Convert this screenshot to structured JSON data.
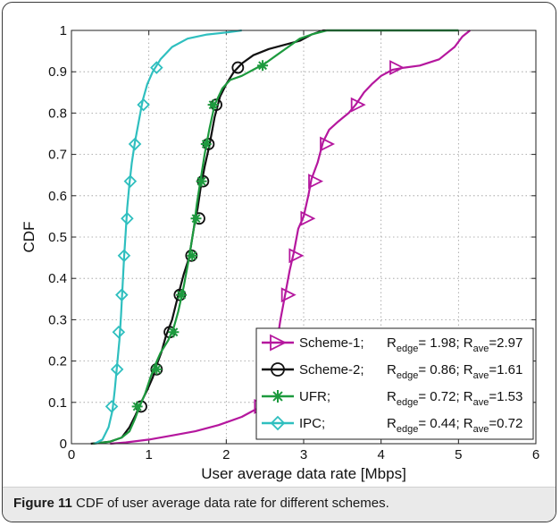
{
  "caption": {
    "label": "Figure 11",
    "text": "CDF of user average data rate for different schemes",
    "end": "."
  },
  "chart_data": {
    "type": "line",
    "title": "",
    "xlabel": "User average data rate [Mbps]",
    "ylabel": "CDF",
    "xlim": [
      0,
      6
    ],
    "ylim": [
      0,
      1
    ],
    "x_ticks": [
      "0",
      "1",
      "2",
      "3",
      "4",
      "5",
      "6"
    ],
    "y_ticks": [
      "0",
      "0.1",
      "0.2",
      "0.3",
      "0.4",
      "0.5",
      "0.6",
      "0.7",
      "0.8",
      "0.9",
      "1"
    ],
    "grid": true,
    "legend_position": "bottom-right",
    "series": [
      {
        "name": "Scheme-1",
        "legend": {
          "prefix": "Scheme-1;",
          "edge": "1.98",
          "ave": "2.97"
        },
        "color": "#b5179e",
        "marker": "triangle-right",
        "points": [
          [
            0.5,
            0
          ],
          [
            0.7,
            0.003
          ],
          [
            1.0,
            0.01
          ],
          [
            1.3,
            0.02
          ],
          [
            1.6,
            0.03
          ],
          [
            1.9,
            0.045
          ],
          [
            2.2,
            0.065
          ],
          [
            2.45,
            0.09
          ],
          [
            2.6,
            0.15
          ],
          [
            2.65,
            0.24
          ],
          [
            2.7,
            0.3
          ],
          [
            2.76,
            0.36
          ],
          [
            2.82,
            0.42
          ],
          [
            2.87,
            0.46
          ],
          [
            2.93,
            0.52
          ],
          [
            3.0,
            0.55
          ],
          [
            3.06,
            0.6
          ],
          [
            3.1,
            0.64
          ],
          [
            3.18,
            0.68
          ],
          [
            3.25,
            0.73
          ],
          [
            3.33,
            0.76
          ],
          [
            3.45,
            0.78
          ],
          [
            3.58,
            0.8
          ],
          [
            3.67,
            0.82
          ],
          [
            3.78,
            0.85
          ],
          [
            3.88,
            0.87
          ],
          [
            4.0,
            0.89
          ],
          [
            4.15,
            0.905
          ],
          [
            4.3,
            0.91
          ],
          [
            4.5,
            0.915
          ],
          [
            4.75,
            0.93
          ],
          [
            4.95,
            0.96
          ],
          [
            5.05,
            0.985
          ],
          [
            5.15,
            1.0
          ]
        ],
        "markers": [
          [
            2.45,
            0.09
          ],
          [
            2.8,
            0.36
          ],
          [
            2.9,
            0.455
          ],
          [
            3.05,
            0.545
          ],
          [
            3.15,
            0.635
          ],
          [
            3.3,
            0.725
          ],
          [
            3.7,
            0.82
          ],
          [
            4.2,
            0.91
          ]
        ]
      },
      {
        "name": "Scheme-2",
        "legend": {
          "prefix": "Scheme-2;",
          "edge": "0.86",
          "ave": "1.61"
        },
        "color": "#111111",
        "marker": "circle",
        "points": [
          [
            0.25,
            0
          ],
          [
            0.5,
            0.005
          ],
          [
            0.65,
            0.015
          ],
          [
            0.75,
            0.04
          ],
          [
            0.83,
            0.07
          ],
          [
            0.9,
            0.1
          ],
          [
            0.98,
            0.13
          ],
          [
            1.05,
            0.16
          ],
          [
            1.1,
            0.19
          ],
          [
            1.16,
            0.22
          ],
          [
            1.22,
            0.26
          ],
          [
            1.3,
            0.3
          ],
          [
            1.38,
            0.36
          ],
          [
            1.45,
            0.41
          ],
          [
            1.52,
            0.45
          ],
          [
            1.58,
            0.52
          ],
          [
            1.63,
            0.57
          ],
          [
            1.67,
            0.62
          ],
          [
            1.72,
            0.67
          ],
          [
            1.78,
            0.72
          ],
          [
            1.85,
            0.79
          ],
          [
            1.92,
            0.84
          ],
          [
            2.0,
            0.87
          ],
          [
            2.1,
            0.9
          ],
          [
            2.2,
            0.92
          ],
          [
            2.35,
            0.94
          ],
          [
            2.55,
            0.955
          ],
          [
            2.75,
            0.965
          ],
          [
            2.95,
            0.975
          ],
          [
            3.1,
            0.99
          ],
          [
            3.25,
            1.0
          ],
          [
            5.0,
            1.0
          ]
        ],
        "markers": [
          [
            0.9,
            0.09
          ],
          [
            1.1,
            0.18
          ],
          [
            1.27,
            0.27
          ],
          [
            1.4,
            0.36
          ],
          [
            1.55,
            0.455
          ],
          [
            1.65,
            0.545
          ],
          [
            1.7,
            0.635
          ],
          [
            1.77,
            0.725
          ],
          [
            1.87,
            0.82
          ],
          [
            2.15,
            0.91
          ]
        ]
      },
      {
        "name": "UFR",
        "legend": {
          "prefix": "UFR;",
          "edge": "0.72",
          "ave": "1.53"
        },
        "color": "#1d9a3e",
        "marker": "star",
        "points": [
          [
            0.28,
            0
          ],
          [
            0.5,
            0.005
          ],
          [
            0.65,
            0.015
          ],
          [
            0.75,
            0.03
          ],
          [
            0.82,
            0.06
          ],
          [
            0.88,
            0.09
          ],
          [
            0.95,
            0.12
          ],
          [
            1.02,
            0.16
          ],
          [
            1.08,
            0.19
          ],
          [
            1.15,
            0.22
          ],
          [
            1.25,
            0.25
          ],
          [
            1.32,
            0.28
          ],
          [
            1.38,
            0.32
          ],
          [
            1.45,
            0.38
          ],
          [
            1.52,
            0.45
          ],
          [
            1.58,
            0.52
          ],
          [
            1.62,
            0.58
          ],
          [
            1.67,
            0.64
          ],
          [
            1.72,
            0.7
          ],
          [
            1.78,
            0.76
          ],
          [
            1.85,
            0.82
          ],
          [
            1.95,
            0.86
          ],
          [
            2.05,
            0.88
          ],
          [
            2.2,
            0.89
          ],
          [
            2.35,
            0.905
          ],
          [
            2.5,
            0.92
          ],
          [
            2.65,
            0.94
          ],
          [
            2.8,
            0.96
          ],
          [
            2.95,
            0.98
          ],
          [
            3.1,
            0.99
          ],
          [
            3.3,
            1.0
          ],
          [
            5.0,
            1.0
          ]
        ],
        "markers": [
          [
            0.85,
            0.09
          ],
          [
            1.1,
            0.18
          ],
          [
            1.32,
            0.27
          ],
          [
            1.42,
            0.36
          ],
          [
            1.56,
            0.455
          ],
          [
            1.61,
            0.545
          ],
          [
            1.68,
            0.635
          ],
          [
            1.74,
            0.725
          ],
          [
            1.83,
            0.82
          ],
          [
            2.47,
            0.915
          ]
        ]
      },
      {
        "name": "IPC",
        "legend": {
          "prefix": "IPC;",
          "edge": "0.44",
          "ave": "0.72"
        },
        "color": "#2fbfbf",
        "marker": "diamond",
        "points": [
          [
            0.3,
            0
          ],
          [
            0.4,
            0.01
          ],
          [
            0.48,
            0.04
          ],
          [
            0.53,
            0.08
          ],
          [
            0.56,
            0.13
          ],
          [
            0.59,
            0.19
          ],
          [
            0.62,
            0.25
          ],
          [
            0.64,
            0.31
          ],
          [
            0.66,
            0.38
          ],
          [
            0.68,
            0.45
          ],
          [
            0.7,
            0.51
          ],
          [
            0.72,
            0.57
          ],
          [
            0.75,
            0.63
          ],
          [
            0.78,
            0.68
          ],
          [
            0.82,
            0.73
          ],
          [
            0.87,
            0.78
          ],
          [
            0.92,
            0.83
          ],
          [
            0.98,
            0.87
          ],
          [
            1.05,
            0.9
          ],
          [
            1.15,
            0.93
          ],
          [
            1.3,
            0.96
          ],
          [
            1.5,
            0.98
          ],
          [
            1.75,
            0.99
          ],
          [
            2.0,
            0.995
          ],
          [
            2.2,
            1.0
          ]
        ],
        "markers": [
          [
            0.52,
            0.09
          ],
          [
            0.59,
            0.18
          ],
          [
            0.61,
            0.27
          ],
          [
            0.65,
            0.36
          ],
          [
            0.68,
            0.455
          ],
          [
            0.72,
            0.545
          ],
          [
            0.76,
            0.635
          ],
          [
            0.82,
            0.725
          ],
          [
            0.93,
            0.82
          ],
          [
            1.1,
            0.91
          ]
        ]
      }
    ]
  }
}
